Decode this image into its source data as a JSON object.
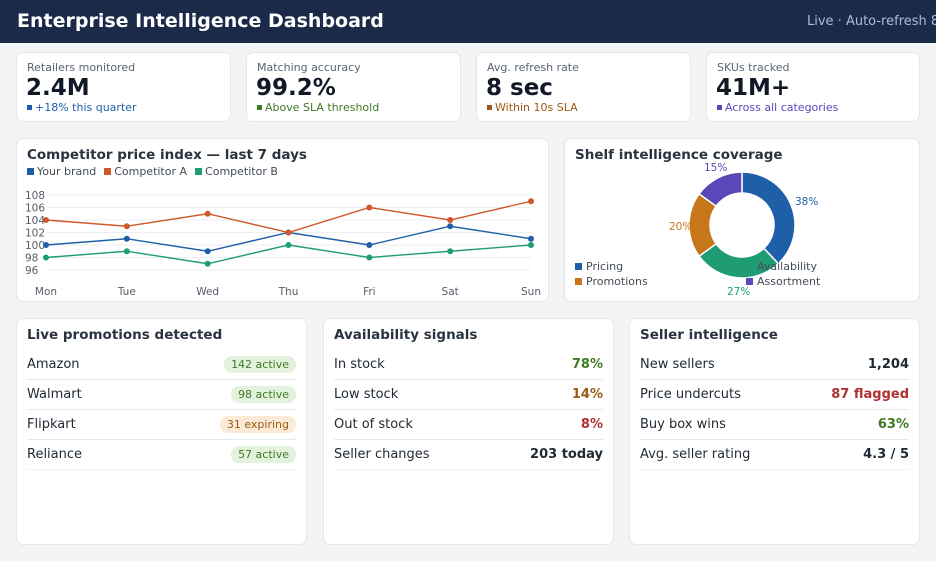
{
  "header": {
    "title": "Enterprise Intelligence Dashboard",
    "status": "Live · Auto-refresh 8"
  },
  "kpis": [
    {
      "label": "Retailers monitored",
      "value": "2.4M",
      "sub": "+18% this quarter",
      "color": "#1f5fa8"
    },
    {
      "label": "Matching accuracy",
      "value": "99.2%",
      "sub": "Above SLA threshold",
      "color": "#3f7a25"
    },
    {
      "label": "Avg. refresh rate",
      "value": "8 sec",
      "sub": "Within 10s SLA",
      "color": "#9a5a13"
    },
    {
      "label": "SKUs tracked",
      "value": "41M+",
      "sub": "Across all categories",
      "color": "#5b48b8"
    }
  ],
  "price_chart": {
    "title": "Competitor price index — last 7 days",
    "legend": [
      "Your brand",
      "Competitor A",
      "Competitor B"
    ]
  },
  "shelf_chart": {
    "title": "Shelf intelligence coverage",
    "legend": [
      "Pricing",
      "Availability",
      "Promotions",
      "Assortment"
    ],
    "pct_labels": [
      "38%",
      "27%",
      "20%",
      "15%"
    ]
  },
  "chart_data": [
    {
      "type": "line",
      "title": "Competitor price index — last 7 days",
      "categories": [
        "Mon",
        "Tue",
        "Wed",
        "Thu",
        "Fri",
        "Sat",
        "Sun"
      ],
      "yticks": [
        "96",
        "98",
        "100",
        "102",
        "104",
        "106",
        "108"
      ],
      "ylim": [
        96,
        108
      ],
      "grid": true,
      "legend_position": "top-left",
      "series": [
        {
          "name": "Your brand",
          "color": "#1f5fa8",
          "values": [
            100,
            101,
            99,
            102,
            100,
            103,
            101
          ]
        },
        {
          "name": "Competitor A",
          "color": "#d0582a",
          "values": [
            104,
            103,
            105,
            102,
            106,
            104,
            107
          ]
        },
        {
          "name": "Competitor B",
          "color": "#1f9c74",
          "values": [
            98,
            99,
            97,
            100,
            98,
            99,
            100
          ]
        }
      ]
    },
    {
      "type": "pie",
      "title": "Shelf intelligence coverage",
      "categories": [
        "Pricing",
        "Availability",
        "Promotions",
        "Assortment"
      ],
      "values": [
        38,
        27,
        20,
        15
      ],
      "colors": [
        "#1f5fa8",
        "#1f9c74",
        "#c7761a",
        "#5b48b8"
      ],
      "legend_position": "left"
    }
  ],
  "promotions": {
    "title": "Live promotions detected",
    "rows": [
      {
        "name": "Amazon",
        "badge": "142 active",
        "tone": "green"
      },
      {
        "name": "Walmart",
        "badge": "98 active",
        "tone": "green"
      },
      {
        "name": "Flipkart",
        "badge": "31 expiring",
        "tone": "orange"
      },
      {
        "name": "Reliance",
        "badge": "57 active",
        "tone": "green"
      }
    ]
  },
  "availability": {
    "title": "Availability signals",
    "rows": [
      {
        "label": "In stock",
        "value": "78%",
        "color": "#3f7a25"
      },
      {
        "label": "Low stock",
        "value": "14%",
        "color": "#9a5a13"
      },
      {
        "label": "Out of stock",
        "value": "8%",
        "color": "#b03030"
      },
      {
        "label": "Seller changes",
        "value": "203 today",
        "color": "#1f2933"
      }
    ]
  },
  "sellers": {
    "title": "Seller intelligence",
    "rows": [
      {
        "label": "New sellers",
        "value": "1,204",
        "color": "#1f2933"
      },
      {
        "label": "Price undercuts",
        "value": "87 flagged",
        "color": "#b03030"
      },
      {
        "label": "Buy box wins",
        "value": "63%",
        "color": "#3f7a25"
      },
      {
        "label": "Avg. seller rating",
        "value": "4.3 / 5",
        "color": "#1f2933"
      }
    ]
  }
}
